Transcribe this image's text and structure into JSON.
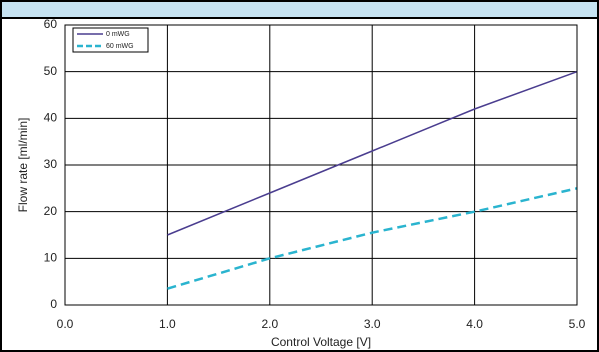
{
  "chart_data": {
    "type": "line",
    "x_label": "Control Voltage [V]",
    "y_label": "Flow rate [ml/min]",
    "x": [
      1,
      2,
      3,
      4,
      5
    ],
    "series": [
      {
        "name": "0 mWG",
        "color": "#4a3d8f",
        "dash": false,
        "values": [
          15,
          24,
          33,
          42,
          50
        ]
      },
      {
        "name": "60 mWG",
        "color": "#2ab4cf",
        "dash": true,
        "values": [
          3.5,
          10,
          15.5,
          20,
          25
        ]
      }
    ],
    "xlim": [
      0,
      5
    ],
    "xticks": [
      {
        "value": 0,
        "label": "0.0"
      },
      {
        "value": 1,
        "label": "1.0"
      },
      {
        "value": 2,
        "label": "2.0"
      },
      {
        "value": 3,
        "label": "3.0"
      },
      {
        "value": 4,
        "label": "4.0"
      },
      {
        "value": 5,
        "label": "5.0"
      }
    ],
    "ylim": [
      0,
      60
    ],
    "yticks": [
      0,
      10,
      20,
      30,
      40,
      50,
      60
    ],
    "grid": true,
    "legend": "top-left"
  }
}
